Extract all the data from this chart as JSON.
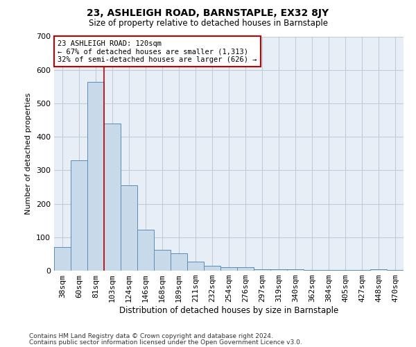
{
  "title1": "23, ASHLEIGH ROAD, BARNSTAPLE, EX32 8JY",
  "title2": "Size of property relative to detached houses in Barnstaple",
  "xlabel": "Distribution of detached houses by size in Barnstaple",
  "ylabel": "Number of detached properties",
  "categories": [
    "38sqm",
    "60sqm",
    "81sqm",
    "103sqm",
    "124sqm",
    "146sqm",
    "168sqm",
    "189sqm",
    "211sqm",
    "232sqm",
    "254sqm",
    "276sqm",
    "297sqm",
    "319sqm",
    "340sqm",
    "362sqm",
    "384sqm",
    "405sqm",
    "427sqm",
    "448sqm",
    "470sqm"
  ],
  "values": [
    70,
    330,
    565,
    440,
    255,
    122,
    62,
    52,
    28,
    15,
    11,
    10,
    4,
    4,
    4,
    3,
    3,
    3,
    3,
    5,
    3
  ],
  "bar_color": "#c8d9ea",
  "bar_edge_color": "#5b8db8",
  "grid_color": "#c0ccd8",
  "background_color": "#e8eef5",
  "vline_color": "#c00000",
  "annotation_text": "23 ASHLEIGH ROAD: 120sqm\n← 67% of detached houses are smaller (1,313)\n32% of semi-detached houses are larger (626) →",
  "annotation_box_color": "#ffffff",
  "annotation_box_edge": "#c00000",
  "footer1": "Contains HM Land Registry data © Crown copyright and database right 2024.",
  "footer2": "Contains public sector information licensed under the Open Government Licence v3.0.",
  "ylim": [
    0,
    700
  ],
  "yticks": [
    0,
    100,
    200,
    300,
    400,
    500,
    600,
    700
  ]
}
